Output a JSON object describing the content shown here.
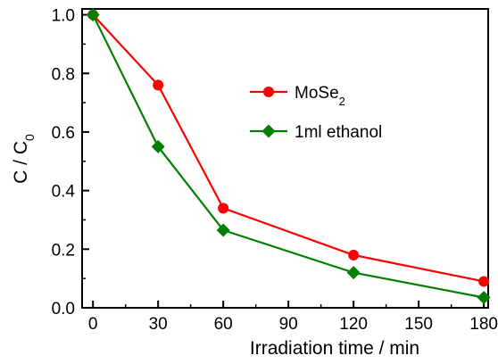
{
  "chart_data": {
    "type": "line",
    "title": "",
    "xlabel": "Irradiation time / min",
    "ylabel": {
      "main": "C / C",
      "sub": "0"
    },
    "xlim": [
      -5,
      182
    ],
    "ylim": [
      0.0,
      1.02
    ],
    "x_ticks": [
      0,
      30,
      60,
      90,
      120,
      150,
      180
    ],
    "y_ticks": [
      0.0,
      0.2,
      0.4,
      0.6,
      0.8,
      1.0
    ],
    "x_tick_labels": [
      "0",
      "30",
      "60",
      "90",
      "120",
      "150",
      "180"
    ],
    "y_tick_labels": [
      "0.0",
      "0.2",
      "0.4",
      "0.6",
      "0.8",
      "1.0"
    ],
    "grid": false,
    "legend_position": "center-right",
    "series": [
      {
        "name": {
          "main": "MoSe",
          "sub": "2"
        },
        "color": "#ff0000",
        "marker": "circle",
        "x": [
          0,
          30,
          60,
          120,
          180
        ],
        "y": [
          1.0,
          0.76,
          0.34,
          0.18,
          0.09
        ]
      },
      {
        "name": {
          "main": "1ml ethanol",
          "sub": ""
        },
        "color": "#008000",
        "marker": "diamond",
        "x": [
          0,
          30,
          60,
          120,
          180
        ],
        "y": [
          1.0,
          0.55,
          0.265,
          0.12,
          0.035
        ]
      }
    ]
  }
}
